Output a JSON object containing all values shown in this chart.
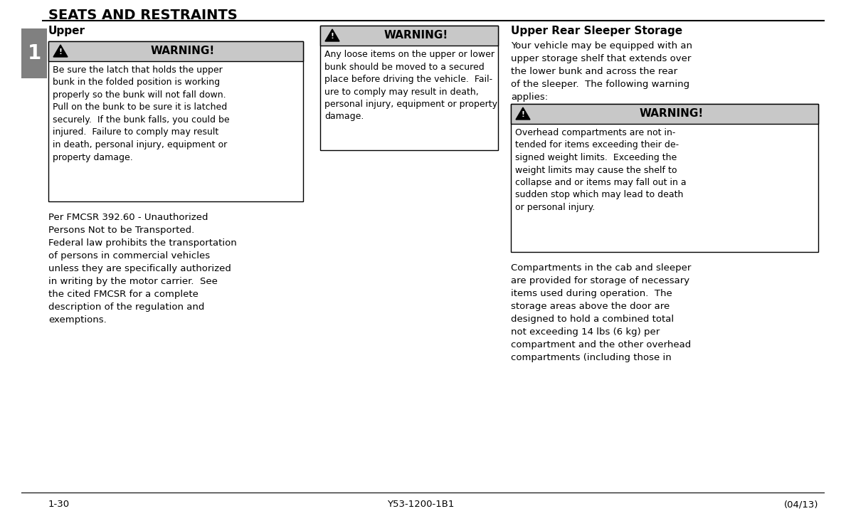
{
  "title": "SEATS AND RESTRAINTS",
  "section_number": "1",
  "bg_color": "#ffffff",
  "title_color": "#000000",
  "section_bg": "#808080",
  "warning_header_bg": "#c8c8c8",
  "warning_border": "#000000",
  "col1_heading": "Upper",
  "col1_warning_text": "Be sure the latch that holds the upper\nbunk in the folded position is working\nproperly so the bunk will not fall down.\nPull on the bunk to be sure it is latched\nsecurely.  If the bunk falls, you could be\ninjured.  Failure to comply may result\nin death, personal injury, equipment or\nproperty damage.",
  "col1_body_text": "Per FMCSR 392.60 - Unauthorized\nPersons Not to be Transported.\nFederal law prohibits the transportation\nof persons in commercial vehicles\nunless they are specifically authorized\nin writing by the motor carrier.  See\nthe cited FMCSR for a complete\ndescription of the regulation and\nexemptions.",
  "col2_warning_text": "Any loose items on the upper or lower\nbunk should be moved to a secured\nplace before driving the vehicle.  Fail-\nure to comply may result in death,\npersonal injury, equipment or property\ndamage.",
  "col3_heading": "Upper Rear Sleeper Storage",
  "col3_intro_text": "Your vehicle may be equipped with an\nupper storage shelf that extends over\nthe lower bunk and across the rear\nof the sleeper.  The following warning\napplies:",
  "col3_warning_text": "Overhead compartments are not in-\ntended for items exceeding their de-\nsigned weight limits.  Exceeding the\nweight limits may cause the shelf to\ncollapse and or items may fall out in a\nsudden stop which may lead to death\nor personal injury.",
  "col3_body_text": "Compartments in the cab and sleeper\nare provided for storage of necessary\nitems used during operation.  The\nstorage areas above the door are\ndesigned to hold a combined total\nnot exceeding 14 lbs (6 kg) per\ncompartment and the other overhead\ncompartments (including those in",
  "footer_left": "1-30",
  "footer_center": "Y53-1200-1B1",
  "footer_right": "(04/13)"
}
